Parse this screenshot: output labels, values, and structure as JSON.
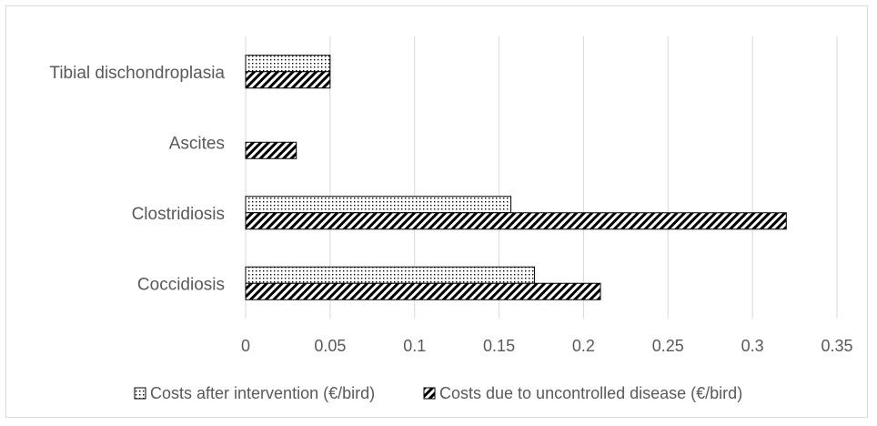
{
  "chart_data": {
    "type": "bar",
    "orientation": "horizontal",
    "categories": [
      "Tibial dischondroplasia",
      "Ascites",
      "Clostridiosis",
      "Coccidiosis"
    ],
    "series": [
      {
        "name": "Costs after intervention (€/bird)",
        "pattern": "dots",
        "values": [
          0.05,
          0,
          0.157,
          0.171
        ]
      },
      {
        "name": "Costs due to uncontrolled disease (€/bird)",
        "pattern": "diagonal-hatch",
        "values": [
          0.05,
          0.03,
          0.32,
          0.21
        ]
      }
    ],
    "xlim": [
      0,
      0.35
    ],
    "x_ticks": [
      "0",
      "0.05",
      "0.1",
      "0.15",
      "0.2",
      "0.25",
      "0.3",
      "0.35"
    ],
    "grid": "vertical",
    "legend_position": "bottom",
    "colors": {
      "text": "#595959",
      "grid": "#d9d9d9",
      "bar_stroke": "#000000"
    }
  }
}
